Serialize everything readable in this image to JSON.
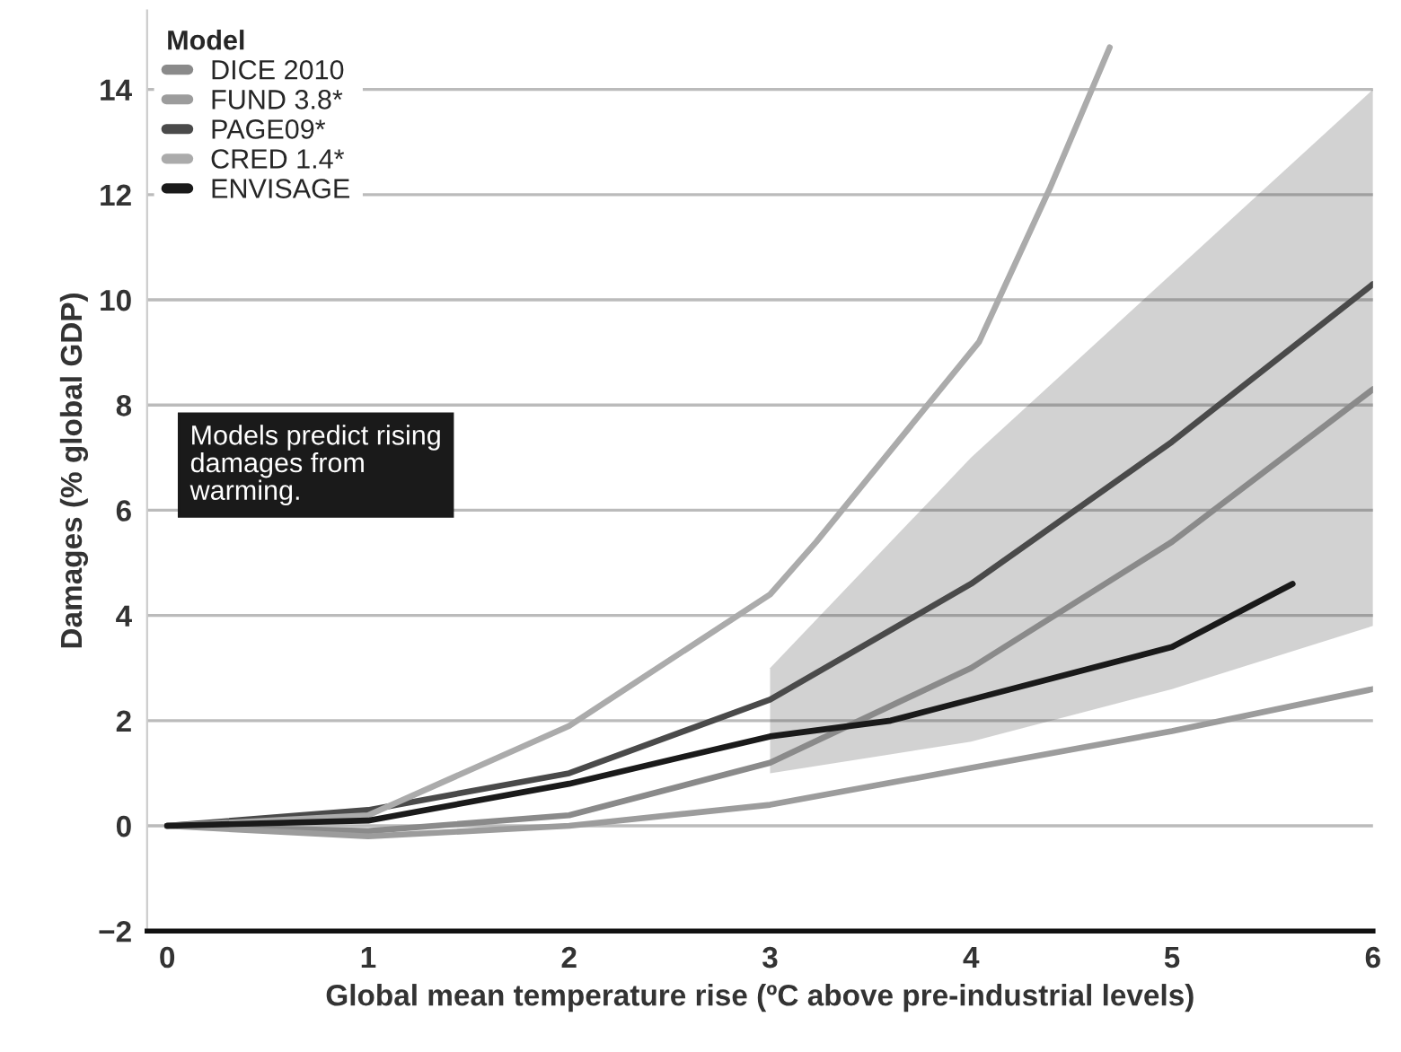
{
  "chart_data": {
    "type": "line",
    "xlabel": "Global mean temperature rise (ºC above pre-industrial levels)",
    "ylabel": "Damages (% global GDP)",
    "legend_title": "Model",
    "legend": "top left",
    "grid": "y",
    "xlim": [
      -0.1,
      6
    ],
    "xticks": [
      0,
      1,
      2,
      3,
      4,
      5,
      6
    ],
    "ylim": [
      -2,
      15.5
    ],
    "yticks": [
      -2,
      0,
      2,
      4,
      6,
      8,
      10,
      12,
      14
    ],
    "annotations": [
      "Models predict rising damages from warming."
    ],
    "series": [
      {
        "name": "DICE 2010",
        "color": "#8a8a8a",
        "x": [
          0,
          1,
          2,
          3,
          4,
          5,
          6
        ],
        "values": [
          0,
          -0.1,
          0.2,
          1.2,
          3.0,
          5.4,
          8.3
        ]
      },
      {
        "name": "FUND 3.8*",
        "color": "#9c9c9c",
        "x": [
          0,
          1,
          2,
          3,
          4,
          5,
          6
        ],
        "values": [
          0,
          -0.2,
          0.0,
          0.4,
          1.1,
          1.8,
          2.6
        ]
      },
      {
        "name": "PAGE09*",
        "color": "#4a4a4a",
        "x": [
          0,
          1,
          2,
          3,
          4,
          5,
          6
        ],
        "values": [
          0,
          0.3,
          1.0,
          2.4,
          4.6,
          7.3,
          10.3
        ],
        "lower": [
          null,
          null,
          null,
          1.0,
          1.6,
          2.6,
          3.8
        ],
        "upper": [
          null,
          null,
          null,
          3.0,
          7.0,
          10.5,
          14.0
        ]
      },
      {
        "name": "CRED 1.4*",
        "color": "#ababab",
        "x": [
          0,
          1,
          2,
          3,
          3.23,
          4.04,
          4.39,
          4.69
        ],
        "values": [
          0,
          0.2,
          1.9,
          4.4,
          5.4,
          9.2,
          12.1,
          14.8
        ]
      },
      {
        "name": "ENVISAGE",
        "color": "#1a1a1a",
        "x": [
          0,
          1,
          2,
          3,
          3.6,
          4,
          5,
          5.6
        ],
        "values": [
          0,
          0.1,
          0.8,
          1.7,
          2.0,
          2.4,
          3.4,
          4.6
        ]
      }
    ]
  }
}
